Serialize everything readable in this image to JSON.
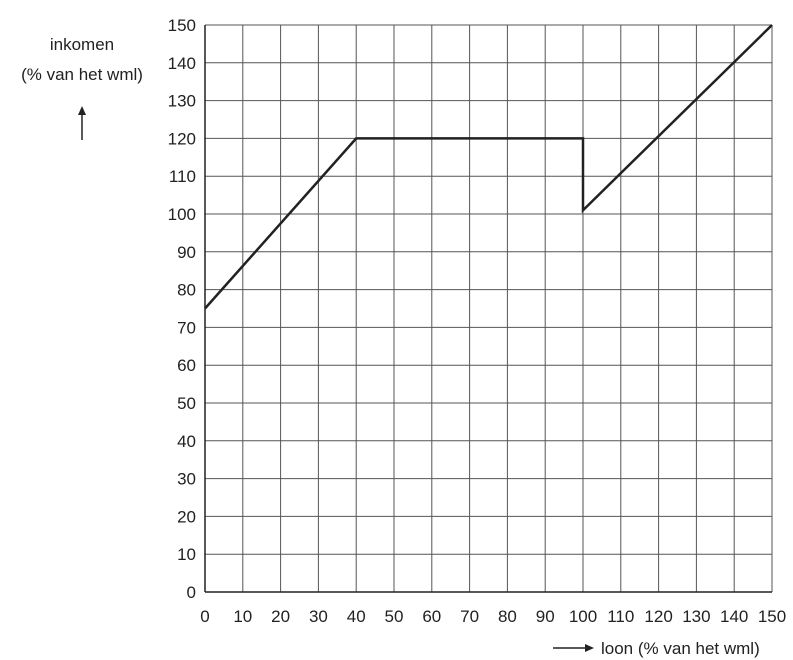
{
  "chart_data": {
    "type": "line",
    "title": "",
    "ylabel_line1": "inkomen",
    "ylabel_line2": "(% van het wml)",
    "xlabel": "loon (% van het wml)",
    "xlim": [
      0,
      150
    ],
    "ylim": [
      0,
      150
    ],
    "x_ticks": [
      0,
      10,
      20,
      30,
      40,
      50,
      60,
      70,
      80,
      90,
      100,
      110,
      120,
      130,
      140,
      150
    ],
    "y_ticks": [
      0,
      10,
      20,
      30,
      40,
      50,
      60,
      70,
      80,
      90,
      100,
      110,
      120,
      130,
      140,
      150
    ],
    "grid": true,
    "series": [
      {
        "x": [
          0,
          40,
          100,
          100,
          150
        ],
        "y": [
          75,
          120,
          120,
          101,
          150
        ]
      }
    ],
    "colors": {
      "line": "#222222",
      "grid": "#555555",
      "text": "#222222"
    }
  }
}
